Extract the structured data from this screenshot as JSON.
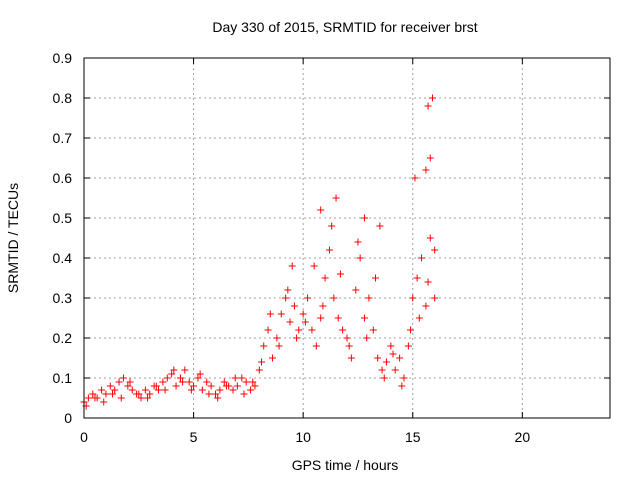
{
  "chart_data": {
    "type": "scatter",
    "title": "Day 330 of 2015, SRMTID for receiver brst",
    "xlabel": "GPS time / hours",
    "ylabel": "SRMTID / TECUs",
    "xlim": [
      0,
      24
    ],
    "ylim": [
      0,
      0.9
    ],
    "xticks": [
      0,
      5,
      10,
      15,
      20
    ],
    "yticks": [
      0,
      0.1,
      0.2,
      0.3,
      0.4,
      0.5,
      0.6,
      0.7,
      0.8,
      0.9
    ],
    "grid": true,
    "marker": "+",
    "color": "#ff0000",
    "series": [
      {
        "name": "SRMTID",
        "x": [
          0.0,
          0.2,
          0.4,
          0.6,
          0.8,
          1.0,
          1.2,
          1.4,
          1.6,
          1.8,
          2.0,
          2.2,
          2.4,
          2.6,
          2.8,
          3.0,
          3.2,
          3.4,
          3.6,
          3.8,
          4.0,
          4.2,
          4.4,
          4.6,
          4.8,
          5.0,
          5.2,
          5.4,
          5.6,
          5.8,
          6.0,
          6.2,
          6.4,
          6.6,
          6.8,
          7.0,
          7.2,
          7.4,
          7.6,
          7.8,
          8.0,
          8.2,
          8.4,
          8.6,
          8.8,
          9.0,
          9.2,
          9.4,
          9.6,
          9.8,
          10.0,
          10.2,
          10.4,
          10.6,
          10.8,
          11.0,
          11.2,
          11.4,
          11.6,
          11.8,
          12.0,
          12.2,
          12.4,
          12.6,
          12.8,
          13.0,
          13.2,
          13.4,
          13.6,
          13.8,
          14.0,
          14.2,
          14.4,
          14.6,
          14.8,
          15.0,
          15.2,
          15.4,
          15.6,
          15.8,
          16.0,
          0.1,
          0.5,
          0.9,
          1.3,
          1.7,
          2.1,
          2.5,
          2.9,
          3.3,
          3.7,
          4.1,
          4.5,
          4.9,
          5.3,
          5.7,
          6.1,
          6.5,
          6.9,
          7.3,
          7.7,
          8.1,
          8.5,
          8.9,
          9.3,
          9.7,
          10.1,
          10.5,
          10.9,
          11.3,
          11.7,
          12.1,
          12.5,
          12.9,
          13.3,
          13.7,
          14.1,
          14.5,
          14.9,
          15.3,
          15.7,
          16.0,
          9.5,
          10.8,
          11.5,
          12.8,
          13.5,
          15.1,
          15.8,
          15.9,
          15.7,
          15.6
        ],
        "y": [
          0.04,
          0.05,
          0.06,
          0.05,
          0.07,
          0.06,
          0.08,
          0.07,
          0.09,
          0.1,
          0.08,
          0.07,
          0.06,
          0.05,
          0.07,
          0.06,
          0.08,
          0.07,
          0.09,
          0.1,
          0.11,
          0.08,
          0.1,
          0.12,
          0.09,
          0.08,
          0.1,
          0.07,
          0.09,
          0.08,
          0.06,
          0.07,
          0.09,
          0.08,
          0.07,
          0.08,
          0.1,
          0.09,
          0.07,
          0.08,
          0.12,
          0.18,
          0.22,
          0.15,
          0.2,
          0.26,
          0.3,
          0.24,
          0.28,
          0.22,
          0.26,
          0.3,
          0.22,
          0.18,
          0.25,
          0.35,
          0.42,
          0.3,
          0.25,
          0.22,
          0.2,
          0.15,
          0.32,
          0.4,
          0.25,
          0.3,
          0.22,
          0.15,
          0.12,
          0.14,
          0.18,
          0.12,
          0.15,
          0.1,
          0.18,
          0.3,
          0.35,
          0.4,
          0.28,
          0.45,
          0.42,
          0.03,
          0.05,
          0.04,
          0.06,
          0.05,
          0.09,
          0.06,
          0.05,
          0.08,
          0.07,
          0.12,
          0.09,
          0.07,
          0.11,
          0.06,
          0.05,
          0.08,
          0.1,
          0.06,
          0.09,
          0.14,
          0.26,
          0.18,
          0.32,
          0.2,
          0.24,
          0.38,
          0.28,
          0.48,
          0.36,
          0.18,
          0.44,
          0.2,
          0.35,
          0.1,
          0.16,
          0.08,
          0.22,
          0.25,
          0.34,
          0.3,
          0.38,
          0.52,
          0.55,
          0.5,
          0.48,
          0.6,
          0.65,
          0.8,
          0.78,
          0.62
        ]
      }
    ]
  }
}
